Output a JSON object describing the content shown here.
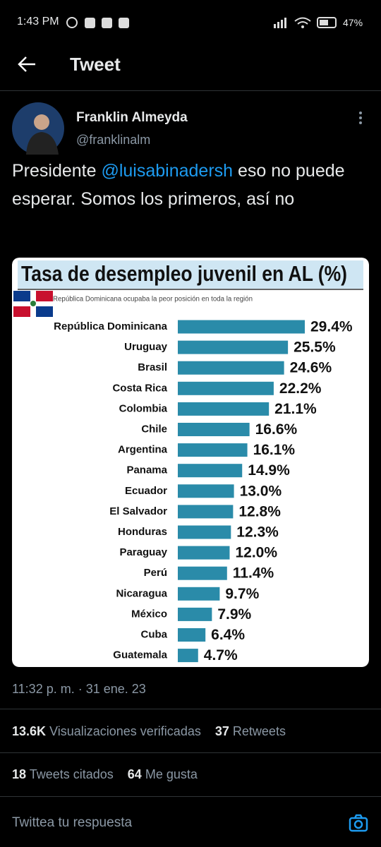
{
  "status_bar": {
    "time": "1:43 PM",
    "battery": "47%"
  },
  "header": {
    "title": "Tweet"
  },
  "tweet": {
    "name": "Franklin Almeyda",
    "handle": "@franklinalm",
    "text_before": "Presidente ",
    "mention": "@luisabinadersh",
    "text_after": " eso no puede esperar. Somos los primeros, así no",
    "timestamp": "11:32 p. m. · 31 ene. 23",
    "stats": [
      {
        "count": "13.6K",
        "label": "Visualizaciones verificadas"
      },
      {
        "count": "37",
        "label": "Retweets"
      },
      {
        "count": "18",
        "label": "Tweets citados"
      },
      {
        "count": "64",
        "label": "Me gusta"
      }
    ],
    "reply_placeholder": "Twittea tu respuesta"
  },
  "chart_data": {
    "type": "hbar",
    "title": "Tasa de desempleo juvenil en AL (%)",
    "subtitle": "República Dominicana ocupaba la peor posición en toda la región",
    "color": "#2a8ba9",
    "categories": [
      "República Dominicana",
      "Uruguay",
      "Brasil",
      "Costa Rica",
      "Colombia",
      "Chile",
      "Argentina",
      "Panama",
      "Ecuador",
      "El Salvador",
      "Honduras",
      "Paraguay",
      "Perú",
      "Nicaragua",
      "México",
      "Cuba",
      "Guatemala"
    ],
    "values": [
      29.4,
      25.5,
      24.6,
      22.2,
      21.1,
      16.6,
      16.1,
      14.9,
      13.0,
      12.8,
      12.3,
      12.0,
      11.4,
      9.7,
      7.9,
      6.4,
      4.7
    ],
    "value_labels": [
      "29.4%",
      "25.5%",
      "24.6%",
      "22.2%",
      "21.1%",
      "16.6%",
      "16.1%",
      "14.9%",
      "13.0%",
      "12.8%",
      "12.3%",
      "12.0%",
      "11.4%",
      "9.7%",
      "7.9%",
      "6.4%",
      "4.7%"
    ]
  }
}
